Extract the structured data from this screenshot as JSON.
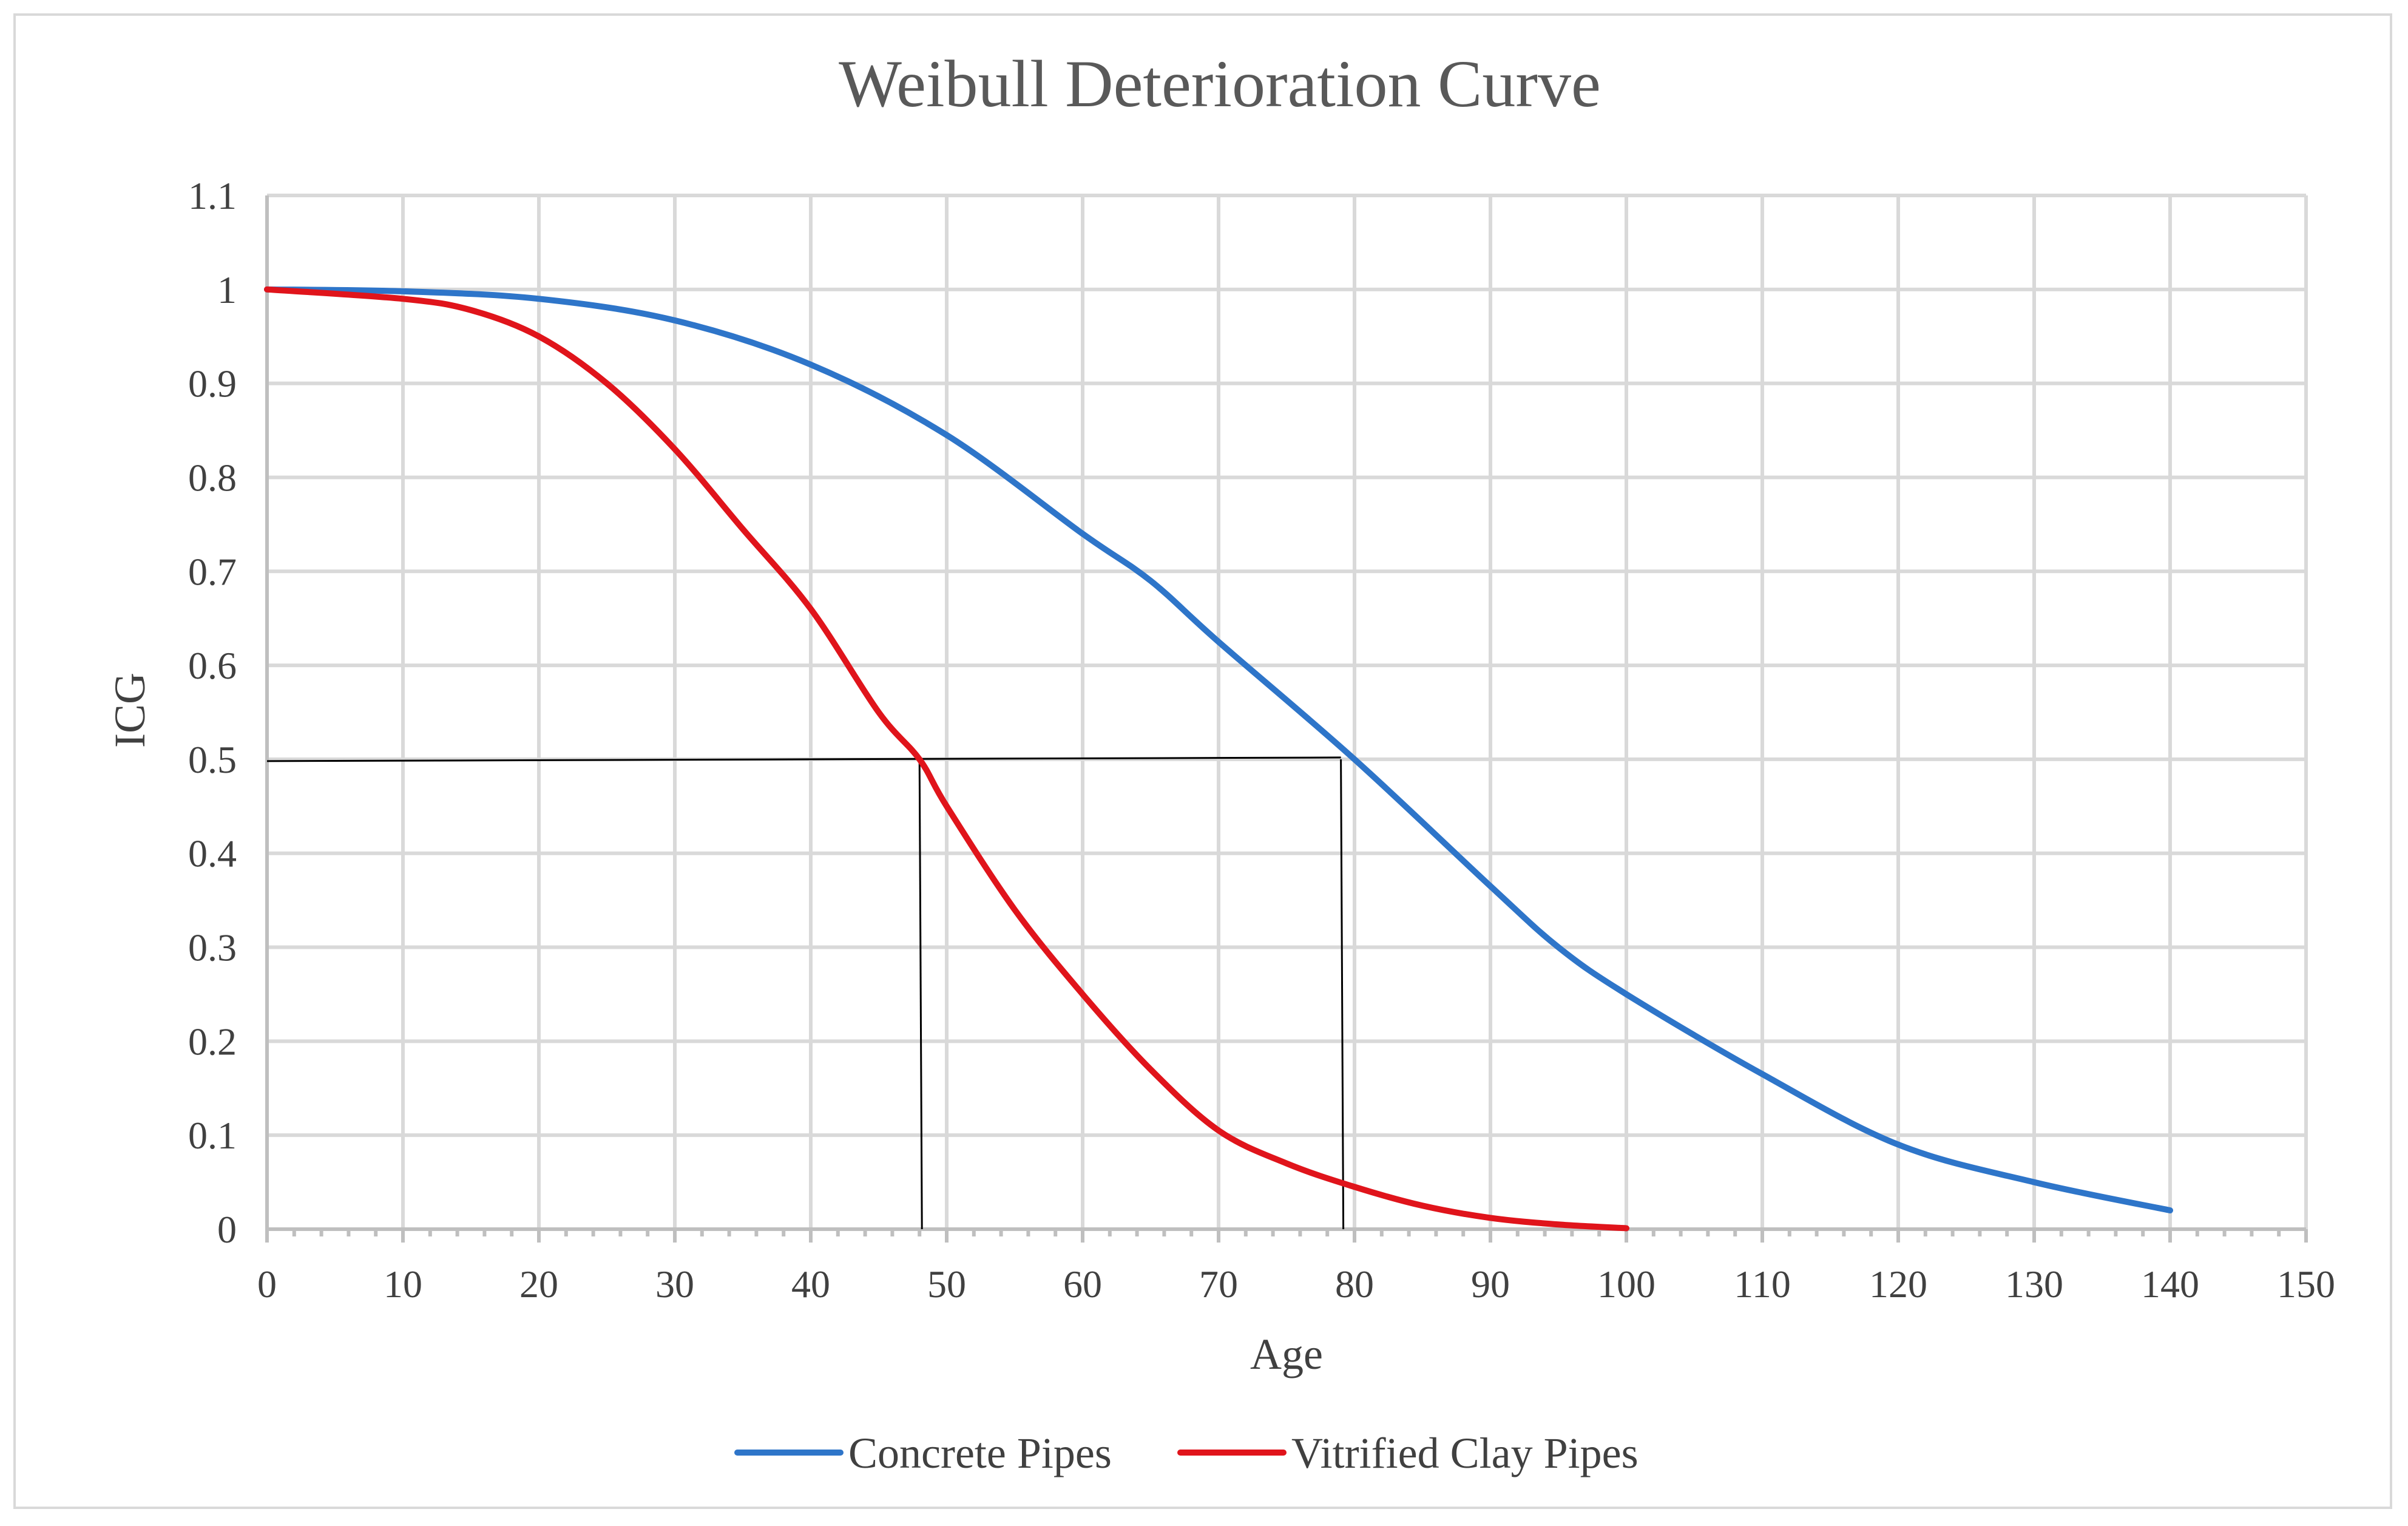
{
  "chart_data": {
    "type": "line",
    "title": "Weibull Deterioration Curve",
    "xlabel": "Age",
    "ylabel": "ICG",
    "xlim": [
      0,
      150
    ],
    "ylim": [
      0,
      1.1
    ],
    "x_ticks": [
      0,
      10,
      20,
      30,
      40,
      50,
      60,
      70,
      80,
      90,
      100,
      110,
      120,
      130,
      140,
      150
    ],
    "y_ticks": [
      0,
      0.1,
      0.2,
      0.3,
      0.4,
      0.5,
      0.6,
      0.7,
      0.8,
      0.9,
      1,
      1.1
    ],
    "grid": true,
    "legend_position": "bottom",
    "series": [
      {
        "name": "Concrete Pipes",
        "color": "#2e75c9",
        "x": [
          0,
          10,
          20,
          30,
          40,
          50,
          60,
          65,
          70,
          80,
          90,
          95,
          100,
          110,
          120,
          130,
          140
        ],
        "y": [
          1.0,
          0.998,
          0.99,
          0.967,
          0.92,
          0.845,
          0.74,
          0.69,
          0.625,
          0.5,
          0.365,
          0.3,
          0.25,
          0.165,
          0.09,
          0.05,
          0.02
        ]
      },
      {
        "name": "Vitrified Clay Pipes",
        "color": "#e0141b",
        "x": [
          0,
          10,
          15,
          20,
          25,
          30,
          35,
          40,
          45,
          48,
          50,
          55,
          60,
          65,
          70,
          75,
          80,
          85,
          90,
          95,
          100
        ],
        "y": [
          1.0,
          0.99,
          0.978,
          0.95,
          0.9,
          0.83,
          0.745,
          0.66,
          0.55,
          0.5,
          0.45,
          0.34,
          0.25,
          0.17,
          0.105,
          0.07,
          0.045,
          0.025,
          0.012,
          0.005,
          0.001
        ]
      }
    ],
    "reference_lines": {
      "y_level": 0.5,
      "x_points": [
        48,
        79
      ]
    }
  }
}
